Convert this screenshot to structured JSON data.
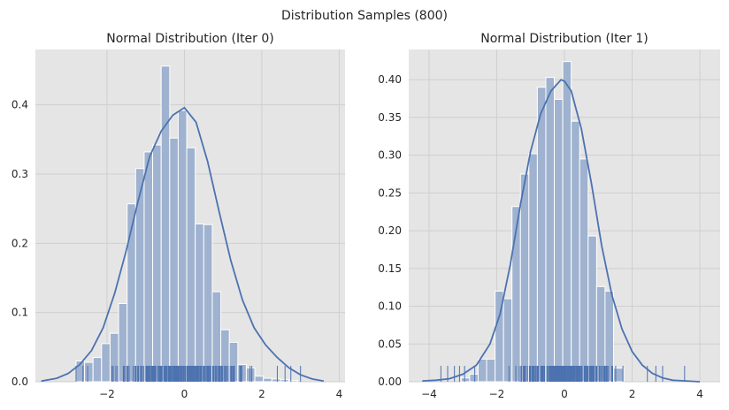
{
  "figure": {
    "suptitle": "Distribution Samples (800)"
  },
  "colors": {
    "plot_bg": "#e5e5e5",
    "grid": "#cfcfcf",
    "bar_fill": "#9fb2cf",
    "bar_edge": "#ffffff",
    "kde_line": "#4c72b0",
    "rug": "#4c72b0",
    "text": "#262626"
  },
  "chart_data": [
    {
      "type": "bar",
      "subtype": "histogram+kde+rug",
      "title": "Normal Distribution (Iter 0)",
      "xlabel": "",
      "ylabel": "",
      "xlim": [
        -3.85,
        4.15
      ],
      "ylim": [
        0,
        0.48
      ],
      "grid": true,
      "xticks": [
        -2,
        0,
        2,
        4
      ],
      "xtick_labels": [
        "−2",
        "0",
        "2",
        "4"
      ],
      "yticks": [
        0.0,
        0.1,
        0.2,
        0.3,
        0.4
      ],
      "ytick_labels": [
        "0.0",
        "0.1",
        "0.2",
        "0.3",
        "0.4"
      ],
      "bin_edges": [
        -2.8,
        -2.58,
        -2.36,
        -2.14,
        -1.92,
        -1.7,
        -1.48,
        -1.26,
        -1.04,
        -0.82,
        -0.6,
        -0.38,
        -0.16,
        0.06,
        0.28,
        0.5,
        0.72,
        0.94,
        1.16,
        1.38,
        1.6,
        1.82,
        2.04,
        2.26,
        2.48,
        2.7,
        2.92
      ],
      "values": [
        0.03,
        0.028,
        0.035,
        0.055,
        0.07,
        0.113,
        0.257,
        0.308,
        0.332,
        0.342,
        0.456,
        0.352,
        0.392,
        0.338,
        0.228,
        0.227,
        0.13,
        0.075,
        0.057,
        0.025,
        0.02,
        0.008,
        0.005,
        0.004,
        0.003,
        0.002
      ],
      "kde": {
        "x": [
          -3.7,
          -3.3,
          -3.0,
          -2.7,
          -2.4,
          -2.1,
          -1.8,
          -1.5,
          -1.2,
          -0.9,
          -0.6,
          -0.3,
          0.0,
          0.3,
          0.6,
          0.9,
          1.2,
          1.5,
          1.8,
          2.1,
          2.4,
          2.7,
          3.0,
          3.3,
          3.6
        ],
        "y": [
          0.001,
          0.005,
          0.012,
          0.025,
          0.045,
          0.078,
          0.128,
          0.19,
          0.26,
          0.325,
          0.362,
          0.385,
          0.396,
          0.375,
          0.318,
          0.245,
          0.175,
          0.118,
          0.078,
          0.053,
          0.035,
          0.02,
          0.01,
          0.004,
          0.001
        ]
      },
      "rug": {
        "range": [
          -2.8,
          3.0
        ],
        "sparse_x": [
          -2.8,
          -2.62,
          -2.5,
          2.4,
          2.6,
          2.75,
          3.0
        ]
      }
    },
    {
      "type": "bar",
      "subtype": "histogram+kde+rug",
      "title": "Normal Distribution (Iter 1)",
      "xlabel": "",
      "ylabel": "",
      "xlim": [
        -4.6,
        4.6
      ],
      "ylim": [
        0,
        0.44
      ],
      "grid": true,
      "xticks": [
        -4,
        -2,
        0,
        2,
        4
      ],
      "xtick_labels": [
        "−4",
        "−2",
        "0",
        "2",
        "4"
      ],
      "yticks": [
        0.0,
        0.05,
        0.1,
        0.15,
        0.2,
        0.25,
        0.3,
        0.35,
        0.4
      ],
      "ytick_labels": [
        "0.00",
        "0.05",
        "0.10",
        "0.15",
        "0.20",
        "0.25",
        "0.30",
        "0.35",
        "0.40"
      ],
      "bin_edges": [
        -3.05,
        -2.8,
        -2.55,
        -2.3,
        -2.05,
        -1.8,
        -1.55,
        -1.3,
        -1.05,
        -0.8,
        -0.55,
        -0.3,
        -0.05,
        0.2,
        0.45,
        0.7,
        0.95,
        1.2,
        1.45,
        1.75
      ],
      "values": [
        0.005,
        0.01,
        0.03,
        0.03,
        0.12,
        0.11,
        0.232,
        0.275,
        0.302,
        0.39,
        0.403,
        0.374,
        0.424,
        0.345,
        0.295,
        0.193,
        0.126,
        0.12,
        0.018
      ],
      "kde": {
        "x": [
          -4.2,
          -3.8,
          -3.4,
          -3.0,
          -2.6,
          -2.2,
          -1.9,
          -1.6,
          -1.3,
          -1.0,
          -0.7,
          -0.4,
          -0.1,
          0.0,
          0.2,
          0.5,
          0.8,
          1.1,
          1.4,
          1.7,
          2.0,
          2.3,
          2.6,
          2.9,
          3.2,
          3.6,
          4.0
        ],
        "y": [
          0.001,
          0.002,
          0.004,
          0.01,
          0.022,
          0.05,
          0.09,
          0.155,
          0.235,
          0.305,
          0.355,
          0.385,
          0.4,
          0.398,
          0.385,
          0.335,
          0.262,
          0.18,
          0.115,
          0.07,
          0.04,
          0.022,
          0.011,
          0.005,
          0.002,
          0.001,
          0.0
        ]
      },
      "rug": {
        "range": [
          -2.8,
          2.3
        ],
        "sparse_x": [
          -3.65,
          -3.45,
          -3.25,
          -3.1,
          -2.95,
          -2.65,
          2.45,
          2.7,
          2.9,
          3.55
        ]
      }
    }
  ]
}
